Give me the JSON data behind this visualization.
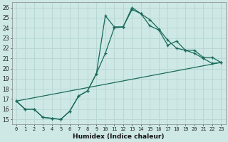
{
  "xlabel": "Humidex (Indice chaleur)",
  "ylabel": "",
  "bg_color": "#cde8e5",
  "line_color": "#1a6b5a",
  "grid_color": "#b8d8d5",
  "xlim": [
    -0.5,
    23.5
  ],
  "ylim": [
    14.5,
    26.5
  ],
  "xticks": [
    0,
    1,
    2,
    3,
    4,
    5,
    6,
    7,
    8,
    9,
    10,
    11,
    12,
    13,
    14,
    15,
    16,
    17,
    18,
    19,
    20,
    21,
    22,
    23
  ],
  "yticks": [
    15,
    16,
    17,
    18,
    19,
    20,
    21,
    22,
    23,
    24,
    25,
    26
  ],
  "line1": {
    "x": [
      0,
      1,
      2,
      3,
      4,
      5,
      6,
      7,
      8,
      9,
      10,
      11,
      12,
      13,
      14,
      15,
      16,
      17,
      18,
      19,
      20,
      21,
      22,
      23
    ],
    "y": [
      16.8,
      16.0,
      16.0,
      15.2,
      15.1,
      15.0,
      15.8,
      17.3,
      17.8,
      19.5,
      21.5,
      24.0,
      24.1,
      25.8,
      25.4,
      24.8,
      23.9,
      22.8,
      22.0,
      21.8,
      21.5,
      21.0,
      20.5,
      20.6
    ]
  },
  "line2": {
    "x": [
      0,
      1,
      2,
      3,
      4,
      5,
      6,
      7,
      8,
      9,
      10,
      11,
      12,
      13,
      14,
      15,
      16,
      17,
      18,
      19,
      20,
      21,
      22,
      23
    ],
    "y": [
      16.8,
      16.0,
      16.0,
      15.2,
      15.1,
      15.0,
      15.8,
      17.3,
      17.8,
      19.5,
      25.2,
      24.1,
      24.1,
      26.0,
      25.4,
      24.2,
      23.8,
      22.3,
      22.7,
      21.8,
      21.8,
      21.1,
      21.1,
      20.6
    ]
  },
  "line3": {
    "x": [
      0,
      23
    ],
    "y": [
      16.8,
      20.6
    ]
  }
}
